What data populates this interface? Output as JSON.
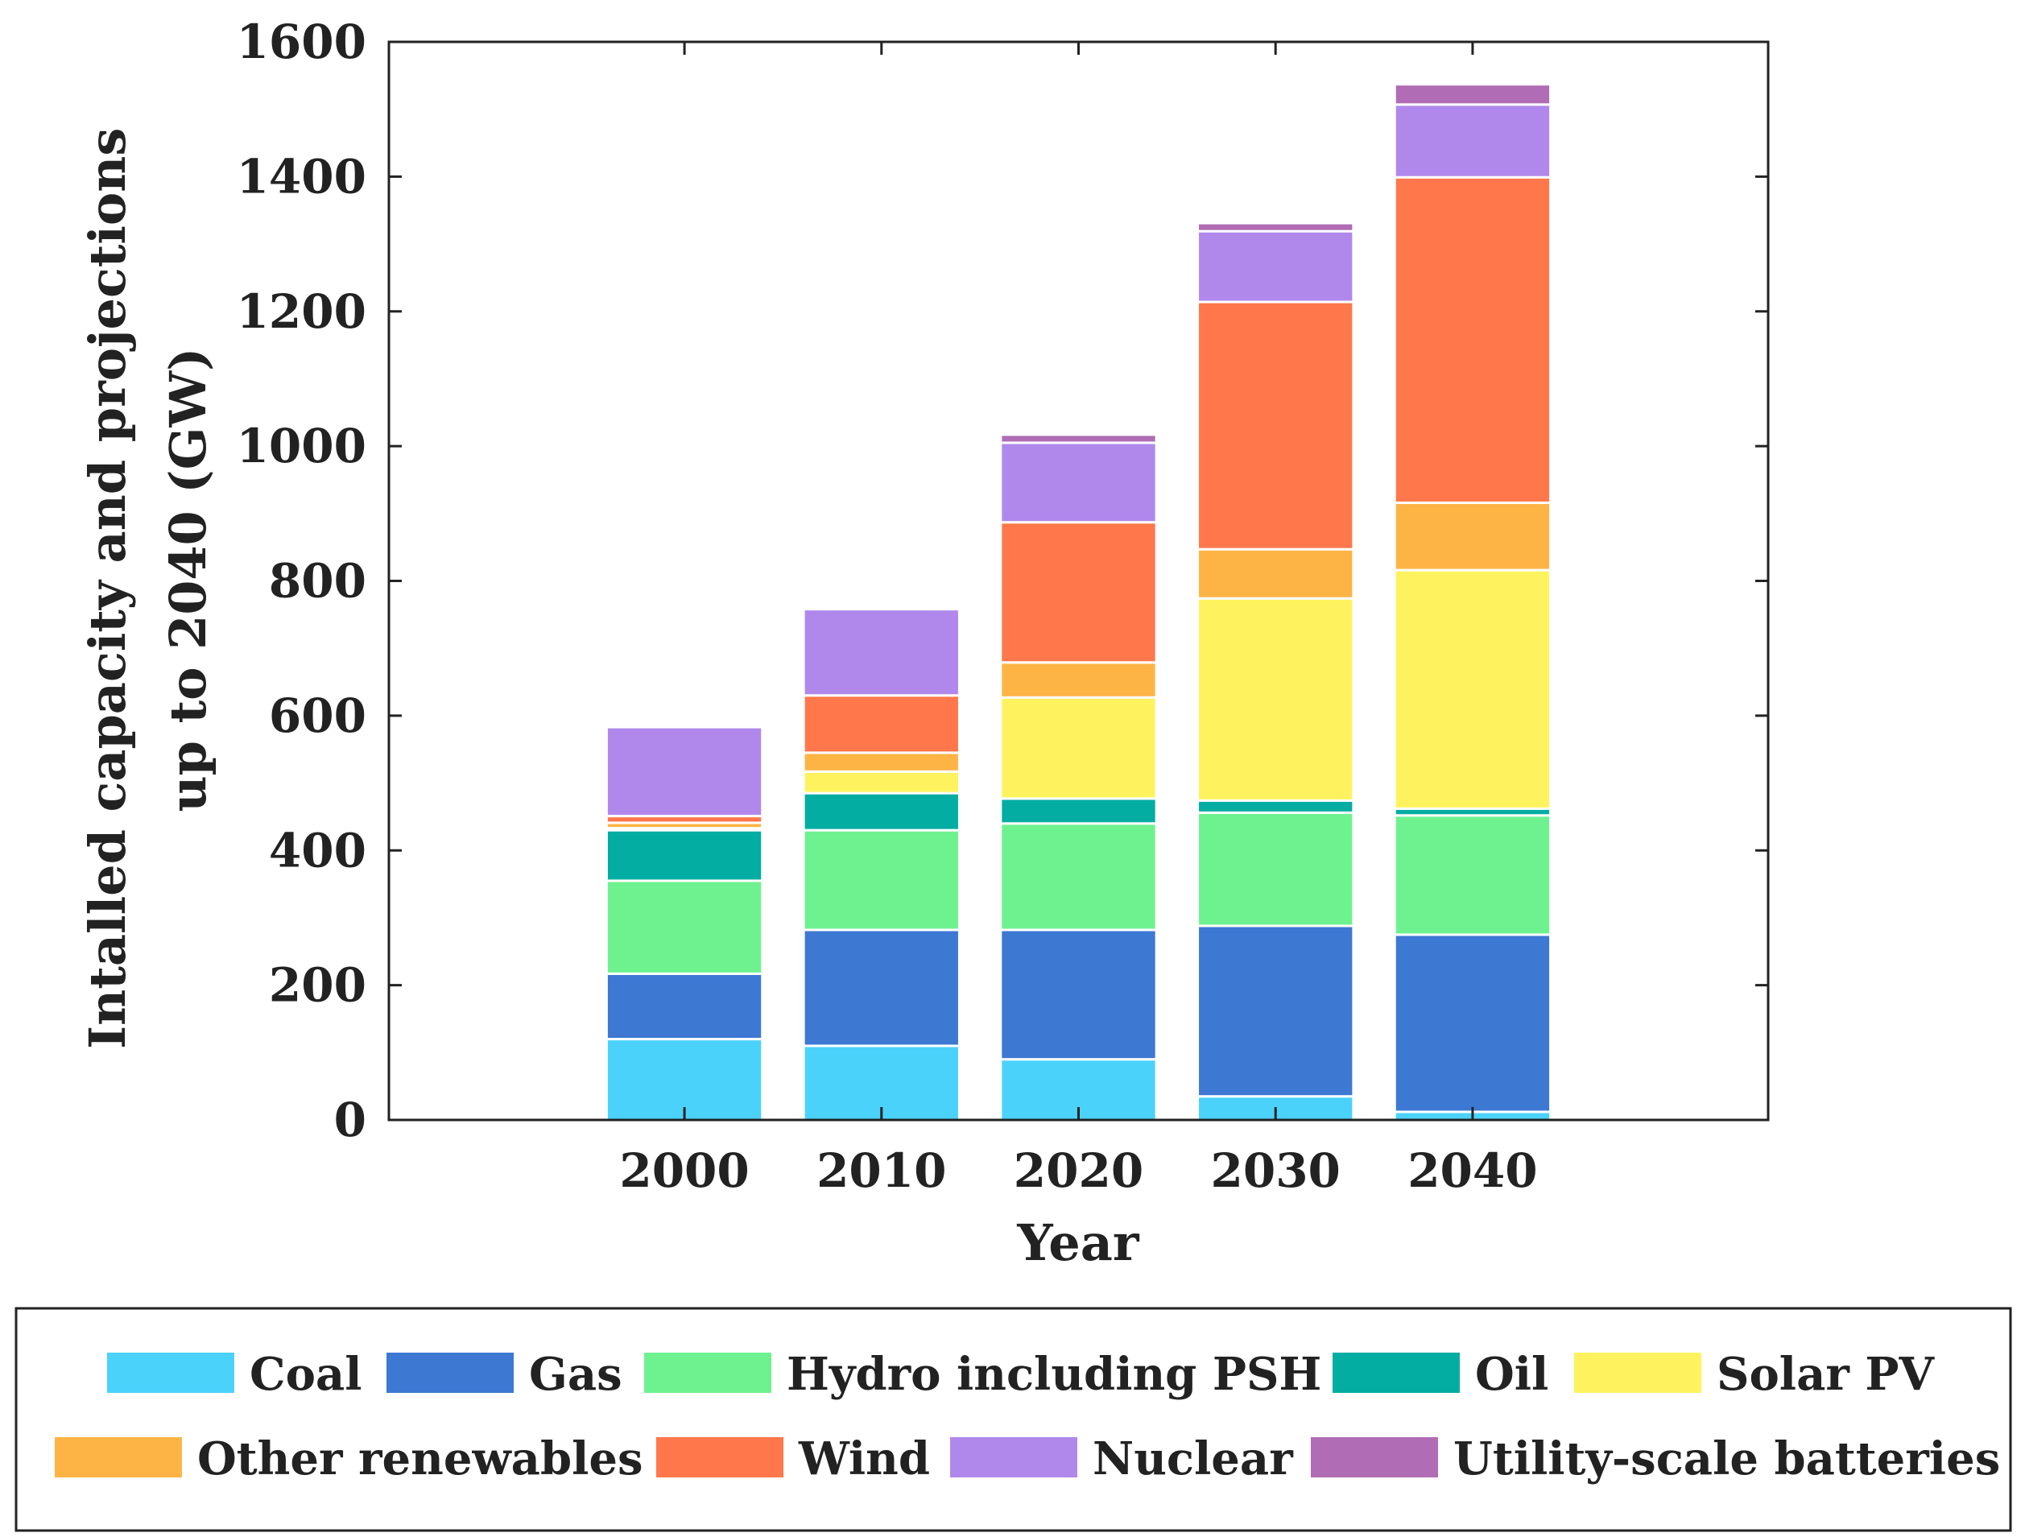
{
  "chart_data": {
    "type": "bar",
    "stacked": true,
    "title": "",
    "xlabel": "Year",
    "ylabel_lines": [
      "Intalled capacity and projections",
      "up to 2040 (GW)"
    ],
    "ylim": [
      0,
      1600
    ],
    "yticks": [
      "0",
      "200",
      "400",
      "600",
      "800",
      "1000",
      "1200",
      "1400",
      "1600"
    ],
    "categories": [
      "2000",
      "2010",
      "2020",
      "2030",
      "2040"
    ],
    "legend_position": "bottom",
    "series": [
      {
        "name": "Coal",
        "color": "#4ad2fb",
        "values": [
          120,
          110,
          90,
          35,
          12
        ]
      },
      {
        "name": "Gas",
        "color": "#3d78d3",
        "values": [
          97,
          172,
          192,
          253,
          263
        ]
      },
      {
        "name": "Hydro including PSH",
        "color": "#6ef290",
        "values": [
          138,
          148,
          158,
          168,
          177
        ]
      },
      {
        "name": "Oil",
        "color": "#03ada2",
        "values": [
          75,
          55,
          37,
          18,
          10
        ]
      },
      {
        "name": "Solar PV",
        "color": "#fef35e",
        "values": [
          3,
          32,
          150,
          300,
          354
        ]
      },
      {
        "name": "Other renewables",
        "color": "#fdb445",
        "values": [
          8,
          28,
          52,
          73,
          100
        ]
      },
      {
        "name": "Wind",
        "color": "#ff774b",
        "values": [
          10,
          85,
          208,
          367,
          483
        ]
      },
      {
        "name": "Nuclear",
        "color": "#b088ec",
        "values": [
          132,
          128,
          118,
          105,
          108
        ]
      },
      {
        "name": "Utility-scale batteries",
        "color": "#b06cb4",
        "values": [
          0,
          0,
          12,
          12,
          30
        ]
      }
    ]
  }
}
